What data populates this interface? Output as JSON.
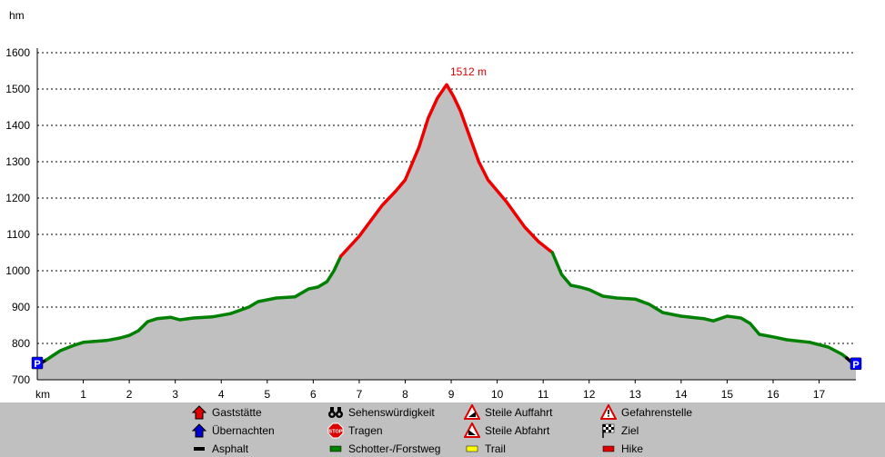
{
  "chart_data": {
    "type": "area",
    "x_unit_label": "km",
    "y_unit_label": "hm",
    "xlim": [
      0,
      17.8
    ],
    "ylim": [
      700,
      1600
    ],
    "x_ticks": [
      1,
      2,
      3,
      4,
      5,
      6,
      7,
      8,
      9,
      10,
      11,
      12,
      13,
      14,
      15,
      16,
      17
    ],
    "y_ticks": [
      700,
      800,
      900,
      1000,
      1100,
      1200,
      1300,
      1400,
      1500,
      1600
    ],
    "grid": "horizontal-dashed",
    "peak": {
      "x": 8.9,
      "y": 1512,
      "label": "1512 m"
    },
    "colors": {
      "fill": "#c0c0c0",
      "gravel": "#008000",
      "hike": "#ee0000",
      "asphalt": "#000000",
      "parking": "#0000ff",
      "label": "#dd0000"
    },
    "segments": [
      {
        "surface": "asphalt",
        "x": [
          0,
          0.2
        ],
        "y": [
          740,
          755
        ]
      },
      {
        "surface": "gravel",
        "x": [
          0.2,
          0.5,
          0.8,
          1.0,
          1.5,
          1.8,
          2.0,
          2.2,
          2.4,
          2.6,
          2.9,
          3.1,
          3.4,
          3.8,
          4.2,
          4.6,
          4.8,
          5.0,
          5.2,
          5.6,
          5.9,
          6.1,
          6.3,
          6.45,
          6.6
        ],
        "y": [
          755,
          780,
          795,
          803,
          808,
          815,
          822,
          835,
          860,
          868,
          872,
          865,
          870,
          873,
          882,
          900,
          915,
          920,
          925,
          928,
          950,
          955,
          970,
          1000,
          1040
        ]
      },
      {
        "surface": "hike",
        "x": [
          6.6,
          7.0,
          7.5,
          7.8,
          8.0,
          8.3,
          8.5,
          8.7,
          8.9,
          9.05,
          9.2,
          9.4,
          9.6,
          9.8,
          10.2,
          10.6,
          10.9,
          11.2
        ],
        "y": [
          1040,
          1095,
          1180,
          1220,
          1250,
          1340,
          1420,
          1475,
          1512,
          1480,
          1440,
          1370,
          1300,
          1250,
          1190,
          1120,
          1080,
          1050
        ]
      },
      {
        "surface": "gravel",
        "x": [
          11.2,
          11.4,
          11.6,
          11.8,
          12.0,
          12.3,
          12.6,
          13.0,
          13.3,
          13.6,
          14.0,
          14.5,
          14.7,
          15.0,
          15.3,
          15.5,
          15.7,
          16.0,
          16.3,
          16.8,
          17.2,
          17.5,
          17.6
        ],
        "y": [
          1050,
          990,
          960,
          955,
          948,
          930,
          925,
          922,
          908,
          885,
          875,
          868,
          862,
          875,
          870,
          855,
          825,
          818,
          810,
          803,
          790,
          770,
          760
        ]
      },
      {
        "surface": "asphalt",
        "x": [
          17.6,
          17.8
        ],
        "y": [
          760,
          738
        ]
      }
    ],
    "start_marker": {
      "x": 0,
      "y": 740,
      "label": "P"
    },
    "end_marker": {
      "x": 17.8,
      "y": 738,
      "label": "P"
    }
  },
  "legend": {
    "items": [
      {
        "icon": "house-red-icon",
        "label": "Gaststätte"
      },
      {
        "icon": "house-blue-icon",
        "label": "Übernachten"
      },
      {
        "icon": "asphalt-swatch",
        "label": "Asphalt"
      },
      {
        "icon": "binoculars-icon",
        "label": "Sehenswürdigkeit"
      },
      {
        "icon": "stop-sign-icon",
        "label": "Tragen"
      },
      {
        "icon": "gravel-swatch",
        "label": "Schotter-/Forstweg"
      },
      {
        "icon": "steep-ascent-icon",
        "label": "Steile Auffahrt"
      },
      {
        "icon": "steep-descent-icon",
        "label": "Steile Abfahrt"
      },
      {
        "icon": "trail-swatch",
        "label": "Trail"
      },
      {
        "icon": "warning-icon",
        "label": "Gefahrenstelle"
      },
      {
        "icon": "checkered-flag-icon",
        "label": "Ziel"
      },
      {
        "icon": "hike-swatch",
        "label": "Hike"
      }
    ]
  }
}
